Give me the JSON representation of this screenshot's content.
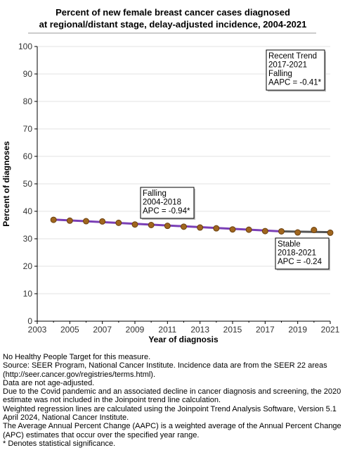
{
  "chart_data": {
    "type": "line",
    "title_lines": [
      "Percent of new female breast cancer cases diagnosed",
      "at regional/distant stage, delay-adjusted incidence, 2004-2021"
    ],
    "xlabel": "Year of diagnosis",
    "ylabel": "Percent of diagnoses",
    "xlim": [
      2003,
      2021
    ],
    "ylim": [
      0,
      100
    ],
    "x_ticks": [
      "2003",
      "2005",
      "2007",
      "2009",
      "2011",
      "2013",
      "2015",
      "2017",
      "2019",
      "2021"
    ],
    "y_ticks": [
      "0",
      "10",
      "20",
      "30",
      "40",
      "50",
      "60",
      "70",
      "80",
      "90",
      "100"
    ],
    "grid": "horizontal",
    "observed": {
      "x": [
        2004,
        2005,
        2006,
        2007,
        2008,
        2009,
        2010,
        2011,
        2012,
        2013,
        2014,
        2015,
        2016,
        2017,
        2018,
        2019,
        2020,
        2021
      ],
      "y": [
        36.9,
        36.6,
        36.4,
        36.3,
        35.8,
        35.2,
        35.0,
        34.7,
        34.4,
        34.1,
        33.8,
        33.4,
        33.3,
        32.8,
        32.7,
        32.3,
        33.2,
        32.2
      ]
    },
    "trend_segments": [
      {
        "x": [
          2004,
          2018
        ],
        "y": [
          37.0,
          32.7
        ],
        "color": "#7a3fb5"
      },
      {
        "x": [
          2018,
          2021
        ],
        "y": [
          32.7,
          32.4
        ],
        "color": "#555555"
      }
    ],
    "marker_color": "#a0661e",
    "marker_edge": "#6b4010",
    "annotations": [
      {
        "lines": [
          "Recent Trend",
          "2017-2021",
          "Falling",
          "AAPC = -0.41*"
        ]
      },
      {
        "lines": [
          "Falling",
          "2004-2018",
          "APC = -0.94*"
        ]
      },
      {
        "lines": [
          "Stable",
          "2018-2021",
          "APC = -0.24"
        ]
      }
    ]
  },
  "footnotes": [
    "No Healthy People Target for this measure.",
    "Source: SEER Program, National Cancer Institute. Incidence data are from the SEER 22 areas (http://seer.cancer.gov/registries/terms.html).",
    "Data are not age-adjusted.",
    "Due to the Covid pandemic and an associated decline in cancer diagnosis and screening, the 2020 estimate was not included in the Joinpoint trend line calculation.",
    "Weighted regression lines are calculated using the Joinpoint Trend Analysis Software, Version 5.1 April 2024, National Cancer Institute.",
    "The Average Annual Percent Change (AAPC) is a weighted average of the Annual Percent Change (APC) estimates that occur over the specified year range.",
    "* Denotes statistical significance."
  ]
}
